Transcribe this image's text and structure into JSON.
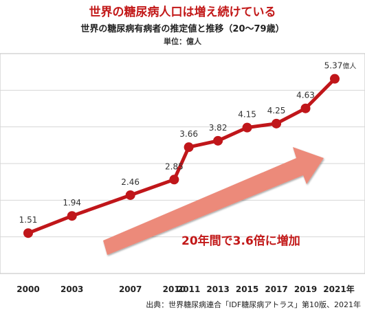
{
  "headline": "世界の糖尿病人口は増え続けている",
  "chart_data": {
    "type": "line",
    "title": "世界の糖尿病有病者の推定値と推移（20〜79歳）",
    "unit_label": "単位：億人",
    "x": [
      2000,
      2003,
      2007,
      2010,
      2011,
      2013,
      2015,
      2017,
      2019,
      2021
    ],
    "x_tick_labels": [
      "2000",
      "2003",
      "2007",
      "2010",
      "2011",
      "2013",
      "2015",
      "2017",
      "2019",
      "2021年"
    ],
    "values": [
      1.51,
      1.94,
      2.46,
      2.85,
      3.66,
      3.82,
      4.15,
      4.25,
      4.63,
      5.37
    ],
    "data_labels": [
      "1.51",
      "1.94",
      "2.46",
      "2.85",
      "3.66",
      "3.82",
      "4.15",
      "4.25",
      "4.63",
      "5.37"
    ],
    "last_label_unit": "億人",
    "ylim": [
      0.5,
      6.0
    ],
    "grid": true,
    "line_color": "#c0161a",
    "arrow_color": "#ec8a7a",
    "annotation": "20年間で3.6倍に増加"
  },
  "source": "出典：世界糖尿病連合「IDF糖尿病アトラス」第10版、2021年"
}
